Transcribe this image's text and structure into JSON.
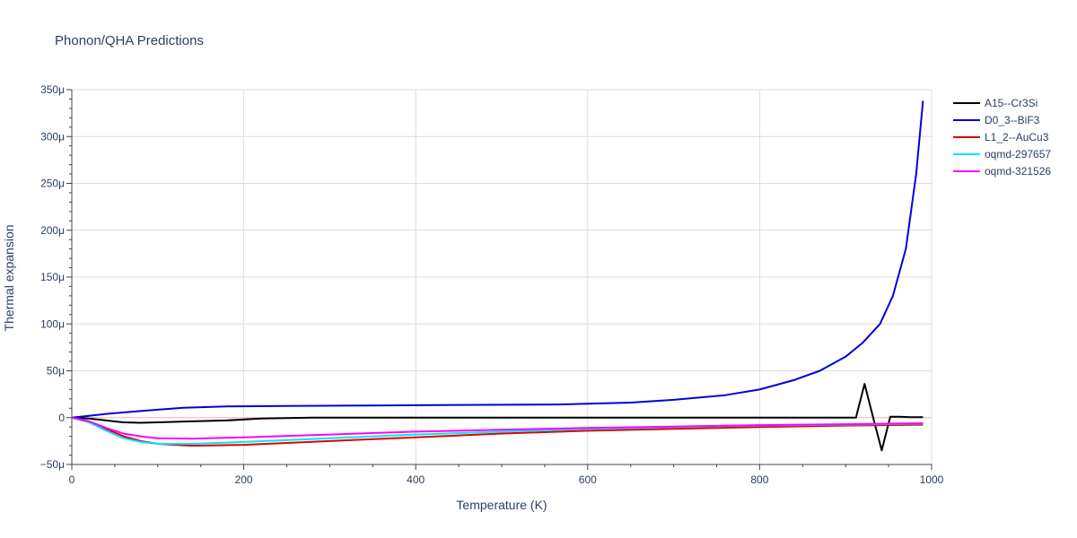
{
  "chart_data": {
    "type": "line",
    "title": "Phonon/QHA Predictions",
    "xlabel": "Temperature (K)",
    "ylabel": "Thermal expansion",
    "xlim": [
      0,
      1000
    ],
    "ylim": [
      -50,
      350
    ],
    "x_ticks": [
      0,
      200,
      400,
      600,
      800,
      1000
    ],
    "y_ticks": [
      -50,
      0,
      50,
      100,
      150,
      200,
      250,
      300,
      350
    ],
    "x_tick_labels": [
      "0",
      "200",
      "400",
      "600",
      "800",
      "1000"
    ],
    "y_tick_labels": [
      "−50μ",
      "0",
      "50μ",
      "100μ",
      "150μ",
      "200μ",
      "250μ",
      "300μ",
      "350μ"
    ],
    "y_unit": "μ",
    "grid": true,
    "legend_position": "top-right",
    "series": [
      {
        "name": "A15--Cr3Si",
        "color": "#000000",
        "x": [
          0,
          20,
          40,
          60,
          80,
          100,
          140,
          180,
          220,
          280,
          340,
          400,
          500,
          600,
          700,
          800,
          900,
          912,
          922,
          932,
          942,
          952,
          962,
          975,
          990
        ],
        "y": [
          0,
          -1,
          -3,
          -5,
          -5.5,
          -5,
          -4,
          -3,
          -1,
          0,
          0,
          0,
          0,
          0,
          0,
          0,
          0,
          0,
          36,
          0,
          -35,
          1,
          1,
          0.5,
          0.5
        ]
      },
      {
        "name": "D0_3--BiF3",
        "color": "#0000dd",
        "x": [
          0,
          20,
          40,
          60,
          80,
          100,
          130,
          180,
          250,
          350,
          450,
          565,
          650,
          700,
          760,
          800,
          840,
          870,
          900,
          920,
          940,
          955,
          970,
          982,
          990
        ],
        "y": [
          0,
          2,
          4,
          5.5,
          7,
          8.5,
          10.5,
          12,
          12.5,
          13,
          13.5,
          14,
          16,
          19,
          24,
          30,
          40,
          50,
          65,
          80,
          100,
          130,
          180,
          260,
          338
        ]
      },
      {
        "name": "L1_2--AuCu3",
        "color": "#dd0000",
        "x": [
          0,
          20,
          40,
          60,
          80,
          100,
          140,
          200,
          300,
          400,
          500,
          600,
          700,
          800,
          900,
          990
        ],
        "y": [
          0,
          -4,
          -12,
          -20,
          -25,
          -28,
          -30,
          -29,
          -25,
          -21,
          -17,
          -14,
          -12,
          -10,
          -8.5,
          -7.5
        ]
      },
      {
        "name": "oqmd-297657",
        "color": "#00e5ff",
        "x": [
          0,
          20,
          40,
          60,
          80,
          100,
          140,
          200,
          300,
          400,
          500,
          600,
          700,
          800,
          900,
          990
        ],
        "y": [
          0,
          -5,
          -14,
          -22,
          -26,
          -28,
          -28,
          -26,
          -22,
          -18,
          -15,
          -12,
          -10,
          -8.5,
          -7.5,
          -6.5
        ]
      },
      {
        "name": "oqmd-321526",
        "color": "#ff00ff",
        "x": [
          0,
          20,
          40,
          60,
          80,
          100,
          140,
          200,
          300,
          400,
          500,
          600,
          700,
          800,
          900,
          990
        ],
        "y": [
          0,
          -4,
          -11,
          -17,
          -20,
          -22,
          -22.5,
          -21,
          -18,
          -15,
          -13,
          -11,
          -9.5,
          -8,
          -7,
          -6
        ]
      }
    ]
  }
}
